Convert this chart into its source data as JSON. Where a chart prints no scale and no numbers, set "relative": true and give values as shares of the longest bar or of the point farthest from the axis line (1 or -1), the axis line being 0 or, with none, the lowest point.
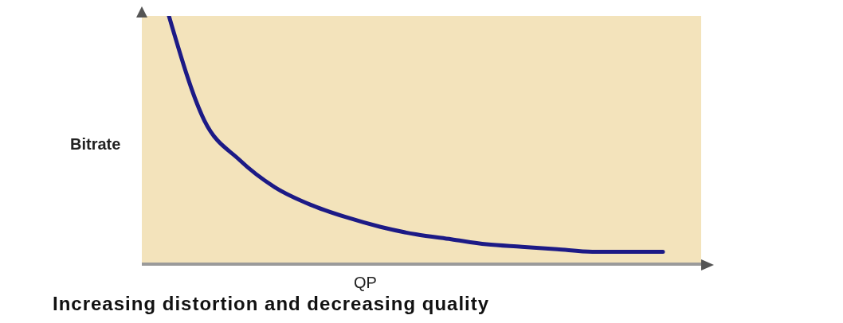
{
  "chart_data": {
    "type": "line",
    "relative": true,
    "xlabel": "QP",
    "ylabel": "Bitrate",
    "annotations": [
      "Increasing distortion and decreasing quality"
    ],
    "categories": [
      null,
      null,
      null,
      null,
      null,
      null,
      null,
      null,
      null,
      null,
      null,
      null,
      null,
      null,
      null
    ],
    "series": [
      {
        "color": "#1c1a86",
        "values": [
          1.0,
          0.58,
          0.42,
          0.31,
          0.24,
          0.19,
          0.15,
          0.12,
          0.1,
          0.08,
          0.07,
          0.06,
          0.05,
          0.05,
          0.05
        ]
      }
    ],
    "marker": "none",
    "line_style": "solid"
  }
}
